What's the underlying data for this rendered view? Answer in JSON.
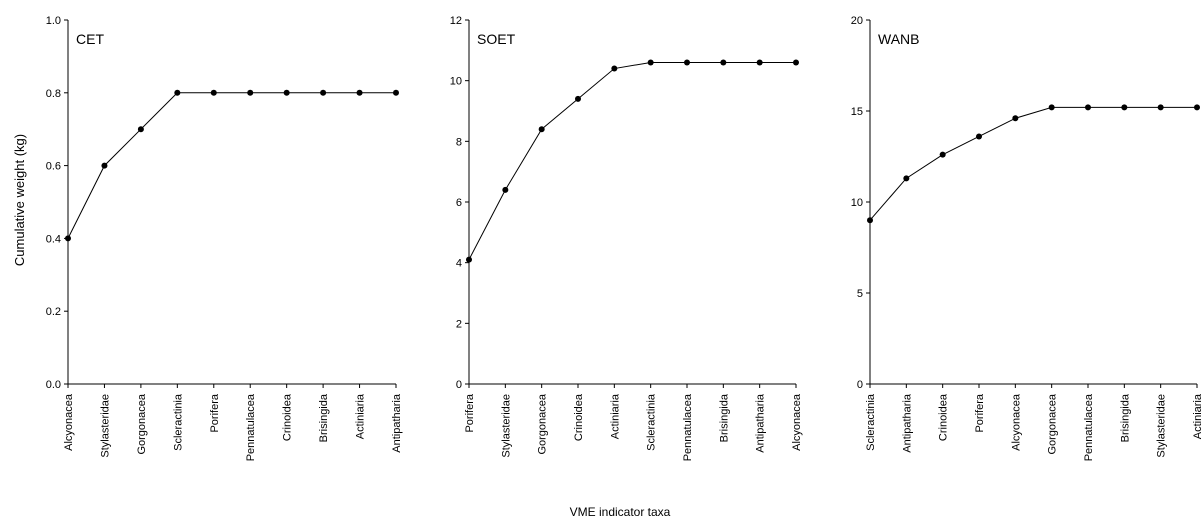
{
  "figure": {
    "ylabel": "Cumulative weight (kg)",
    "xlabel": "VME indicator taxa"
  },
  "chart_data": [
    {
      "type": "line",
      "title": "CET",
      "ylim": [
        0,
        1.0
      ],
      "yticks": [
        0.0,
        0.2,
        0.4,
        0.6,
        0.8,
        1.0
      ],
      "ytick_labels": [
        "0.0",
        "0.2",
        "0.4",
        "0.6",
        "0.8",
        "1.0"
      ],
      "categories": [
        "Alcyonacea",
        "Stylasteridae",
        "Gorgonacea",
        "Scleractinia",
        "Porifera",
        "Pennatulacea",
        "Crinoidea",
        "Brisingida",
        "Actiniaria",
        "Antipatharia"
      ],
      "values": [
        0.4,
        0.6,
        0.7,
        0.8,
        0.8,
        0.8,
        0.8,
        0.8,
        0.8,
        0.8
      ]
    },
    {
      "type": "line",
      "title": "SOET",
      "ylim": [
        0,
        12
      ],
      "yticks": [
        0,
        2,
        4,
        6,
        8,
        10,
        12
      ],
      "ytick_labels": [
        "0",
        "2",
        "4",
        "6",
        "8",
        "10",
        "12"
      ],
      "categories": [
        "Porifera",
        "Stylasteridae",
        "Gorgonacea",
        "Crinoidea",
        "Actiniaria",
        "Scleractinia",
        "Pennatulacea",
        "Brisingida",
        "Antipatharia",
        "Alcyonacea"
      ],
      "values": [
        4.1,
        6.4,
        8.4,
        9.4,
        10.4,
        10.6,
        10.6,
        10.6,
        10.6,
        10.6
      ]
    },
    {
      "type": "line",
      "title": "WANB",
      "ylim": [
        0,
        20
      ],
      "yticks": [
        0,
        5,
        10,
        15,
        20
      ],
      "ytick_labels": [
        "0",
        "5",
        "10",
        "15",
        "20"
      ],
      "categories": [
        "Scleractinia",
        "Antipatharia",
        "Crinoidea",
        "Porifera",
        "Alcyonacea",
        "Gorgonacea",
        "Pennatulacea",
        "Brisingida",
        "Stylasteridae",
        "Actiniaria"
      ],
      "values": [
        9.0,
        11.3,
        12.6,
        13.6,
        14.6,
        15.2,
        15.2,
        15.2,
        15.2,
        15.2
      ]
    }
  ]
}
